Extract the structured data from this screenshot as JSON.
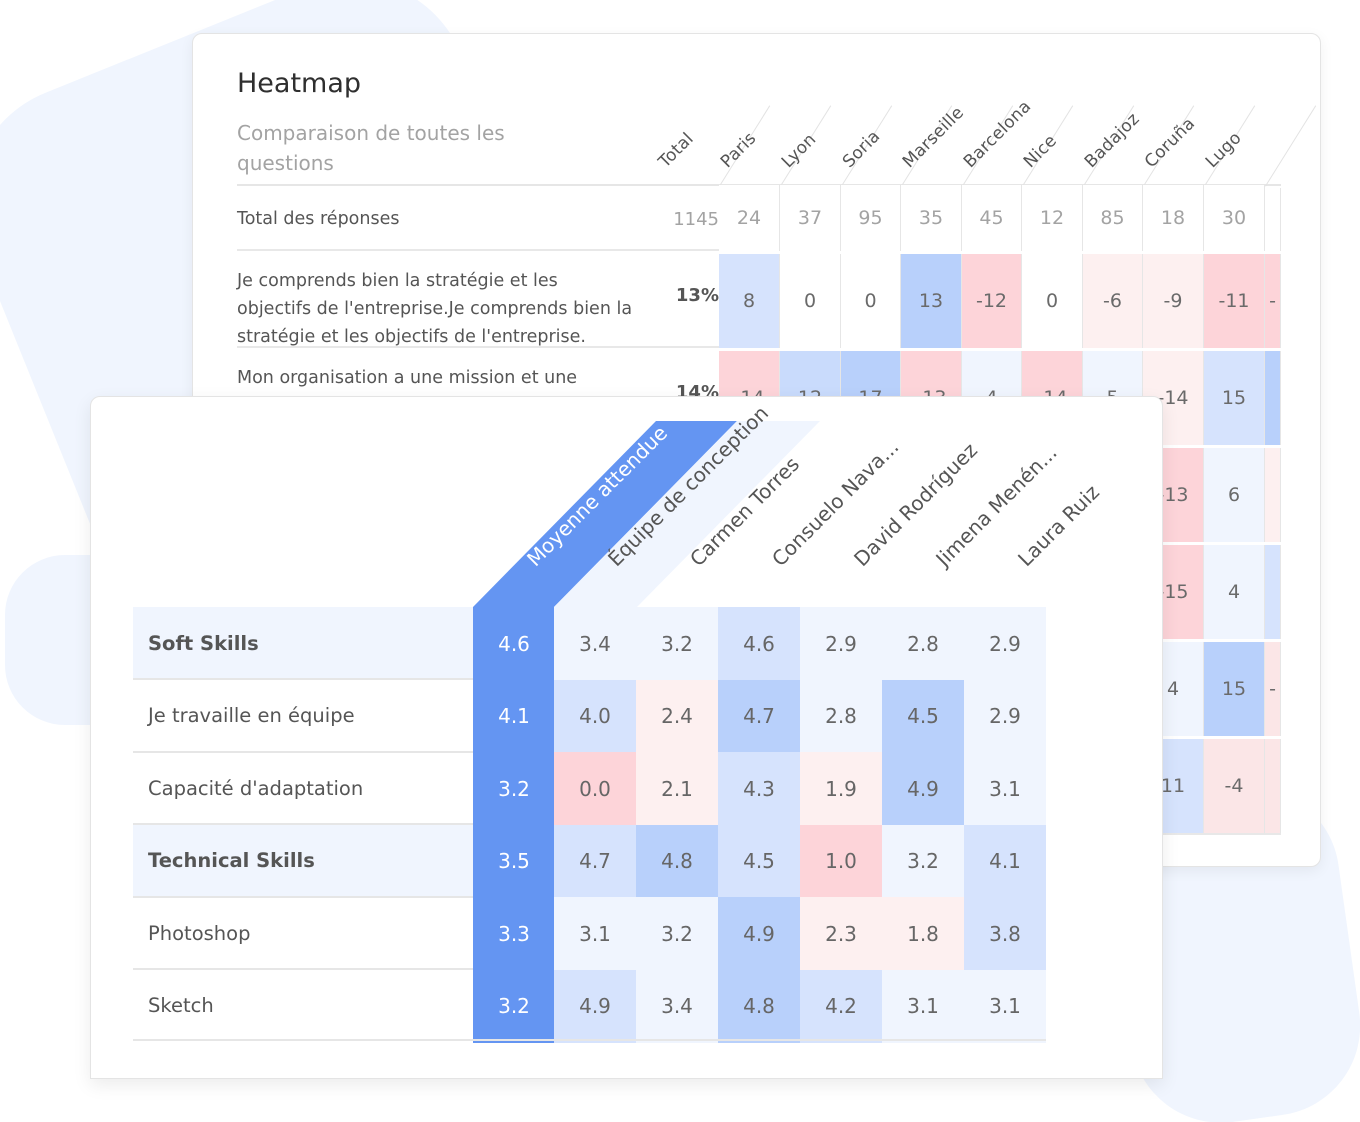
{
  "colors": {
    "accent_blue": "#6495f2",
    "blue_strong": "#b8d0fb",
    "blue_mid": "#c9dbfc",
    "blue_light": "#d6e3fd",
    "blue_faint": "#f0f5fe",
    "red_strong": "#fdd4d9",
    "red_light": "#fbe6e7",
    "red_faint": "#fdf0f0",
    "neutral": "#ffffff",
    "text": "#555555",
    "muted": "#a3a3a3"
  },
  "back_panel": {
    "title": "Heatmap",
    "subtitle": "Comparaison de toutes les questions",
    "columns": [
      "Total",
      "Paris",
      "Lyon",
      "Soria",
      "Marseille",
      "Barcelona",
      "Nice",
      "Badajoz",
      "Coruña",
      "Lugo"
    ],
    "rows": [
      {
        "label": "Total des réponses",
        "total": "1145",
        "values": [
          "24",
          "37",
          "95",
          "35",
          "45",
          "12",
          "85",
          "18",
          "30"
        ],
        "tones": [
          "neutral",
          "neutral",
          "neutral",
          "neutral",
          "neutral",
          "neutral",
          "neutral",
          "neutral",
          "neutral",
          "neutral"
        ]
      },
      {
        "label": "Je comprends bien la stratégie et les objectifs de l'entreprise.Je comprends bien la stratégie et les objectifs de l'entreprise.",
        "total": "13%",
        "values": [
          "8",
          "0",
          "0",
          "13",
          "-12",
          "0",
          "-6",
          "-9",
          "-11",
          "-"
        ],
        "tones": [
          "blue_light",
          "neutral",
          "neutral",
          "blue_strong",
          "red_strong",
          "neutral",
          "red_faint",
          "red_faint",
          "red_strong",
          "red_strong"
        ]
      },
      {
        "label": "Mon organisation a une mission et une",
        "total": "14%",
        "values": [
          "-14",
          "12",
          "17",
          "-13",
          "4",
          "-14",
          "5",
          "-14",
          "15",
          ""
        ],
        "tones": [
          "red_strong",
          "blue_mid",
          "blue_strong",
          "red_strong",
          "blue_faint",
          "red_strong",
          "blue_faint",
          "red_faint",
          "blue_light",
          "blue_strong"
        ]
      },
      {
        "label": "",
        "total": "",
        "values": [
          "",
          "",
          "",
          "",
          "",
          "",
          "",
          "-13",
          "6",
          ""
        ],
        "tones": [
          "neutral",
          "neutral",
          "neutral",
          "neutral",
          "neutral",
          "neutral",
          "neutral",
          "red_strong",
          "blue_faint",
          "red_faint"
        ]
      },
      {
        "label": "",
        "total": "",
        "values": [
          "",
          "",
          "",
          "",
          "",
          "",
          "",
          "-15",
          "4",
          ""
        ],
        "tones": [
          "neutral",
          "neutral",
          "neutral",
          "neutral",
          "neutral",
          "neutral",
          "neutral",
          "red_strong",
          "blue_faint",
          "blue_light"
        ]
      },
      {
        "label": "",
        "total": "",
        "values": [
          "",
          "",
          "",
          "",
          "",
          "",
          "",
          "4",
          "15",
          "-"
        ],
        "tones": [
          "neutral",
          "neutral",
          "neutral",
          "neutral",
          "neutral",
          "neutral",
          "neutral",
          "blue_faint",
          "blue_strong",
          "red_light"
        ]
      },
      {
        "label": "",
        "total": "",
        "values": [
          "",
          "",
          "",
          "",
          "",
          "",
          "",
          "11",
          "-4",
          ""
        ],
        "tones": [
          "neutral",
          "neutral",
          "neutral",
          "neutral",
          "neutral",
          "neutral",
          "neutral",
          "blue_light",
          "red_light",
          "red_light"
        ]
      }
    ]
  },
  "front_panel": {
    "columns": [
      "Moyenne attendue",
      "Équipe de conception",
      "Carmen Torres",
      "Consuelo Nava...",
      "David Rodríguez",
      "Jimena Menén...",
      "Laura Ruiz"
    ],
    "rows": [
      {
        "label": "Soft Skills",
        "group": true,
        "values": [
          "4.6",
          "3.4",
          "3.2",
          "4.6",
          "2.9",
          "2.8",
          "2.9"
        ],
        "tones": [
          "accent",
          "blue_faint",
          "blue_faint",
          "blue_light",
          "blue_faint",
          "blue_faint",
          "blue_faint"
        ]
      },
      {
        "label": "Je travaille en équipe",
        "group": false,
        "values": [
          "4.1",
          "4.0",
          "2.4",
          "4.7",
          "2.8",
          "4.5",
          "2.9"
        ],
        "tones": [
          "accent",
          "blue_light",
          "red_faint",
          "blue_strong",
          "blue_faint",
          "blue_strong",
          "blue_faint"
        ]
      },
      {
        "label": "Capacité d'adaptation",
        "group": false,
        "values": [
          "3.2",
          "0.0",
          "2.1",
          "4.3",
          "1.9",
          "4.9",
          "3.1"
        ],
        "tones": [
          "accent",
          "red_strong",
          "red_faint",
          "blue_light",
          "red_faint",
          "blue_strong",
          "blue_faint"
        ]
      },
      {
        "label": "Technical Skills",
        "group": true,
        "values": [
          "3.5",
          "4.7",
          "4.8",
          "4.5",
          "1.0",
          "3.2",
          "4.1"
        ],
        "tones": [
          "accent",
          "blue_light",
          "blue_strong",
          "blue_light",
          "red_strong",
          "blue_faint",
          "blue_light"
        ]
      },
      {
        "label": "Photoshop",
        "group": false,
        "values": [
          "3.3",
          "3.1",
          "3.2",
          "4.9",
          "2.3",
          "1.8",
          "3.8"
        ],
        "tones": [
          "accent",
          "blue_faint",
          "blue_faint",
          "blue_strong",
          "red_faint",
          "red_faint",
          "blue_light"
        ]
      },
      {
        "label": "Sketch",
        "group": false,
        "values": [
          "3.2",
          "4.9",
          "3.4",
          "4.8",
          "4.2",
          "3.1",
          "3.1"
        ],
        "tones": [
          "accent",
          "blue_light",
          "blue_faint",
          "blue_strong",
          "blue_light",
          "blue_faint",
          "blue_faint"
        ]
      }
    ]
  },
  "chart_data": [
    {
      "type": "heatmap",
      "title": "Heatmap",
      "subtitle": "Comparaison de toutes les questions",
      "x": [
        "Total",
        "Paris",
        "Lyon",
        "Soria",
        "Marseille",
        "Barcelona",
        "Nice",
        "Badajoz",
        "Coruña",
        "Lugo"
      ],
      "rows": [
        {
          "label": "Total des réponses",
          "values": [
            1145,
            24,
            37,
            95,
            35,
            45,
            12,
            85,
            18,
            30
          ]
        },
        {
          "label": "Je comprends bien la stratégie et les objectifs de l'entreprise.",
          "total": "13%",
          "values": [
            8,
            0,
            0,
            13,
            -12,
            0,
            -6,
            -9,
            -11
          ]
        },
        {
          "label": "Mon organisation a une mission et une ...",
          "total": "14%",
          "values": [
            -14,
            12,
            17,
            -13,
            4,
            -14,
            5,
            -14,
            15
          ]
        },
        {
          "label": "(hidden)",
          "partial": {
            "Coruña": -13,
            "Lugo": 6
          }
        },
        {
          "label": "(hidden)",
          "partial": {
            "Coruña": -15,
            "Lugo": 4
          }
        },
        {
          "label": "(hidden)",
          "partial": {
            "Coruña": 4,
            "Lugo": 15
          }
        },
        {
          "label": "(hidden)",
          "partial": {
            "Coruña": 11,
            "Lugo": -4
          }
        }
      ]
    },
    {
      "type": "heatmap",
      "x": [
        "Moyenne attendue",
        "Équipe de conception",
        "Carmen Torres",
        "Consuelo Nava...",
        "David Rodríguez",
        "Jimena Menén...",
        "Laura Ruiz"
      ],
      "y": [
        "Soft Skills",
        "Je travaille en équipe",
        "Capacité d'adaptation",
        "Technical Skills",
        "Photoshop",
        "Sketch"
      ],
      "values": [
        [
          4.6,
          3.4,
          3.2,
          4.6,
          2.9,
          2.8,
          2.9
        ],
        [
          4.1,
          4.0,
          2.4,
          4.7,
          2.8,
          4.5,
          2.9
        ],
        [
          3.2,
          0.0,
          2.1,
          4.3,
          1.9,
          4.9,
          3.1
        ],
        [
          3.5,
          4.7,
          4.8,
          4.5,
          1.0,
          3.2,
          4.1
        ],
        [
          3.3,
          3.1,
          3.2,
          4.9,
          2.3,
          1.8,
          3.8
        ],
        [
          3.2,
          4.9,
          3.4,
          4.8,
          4.2,
          3.1,
          3.1
        ]
      ]
    }
  ]
}
